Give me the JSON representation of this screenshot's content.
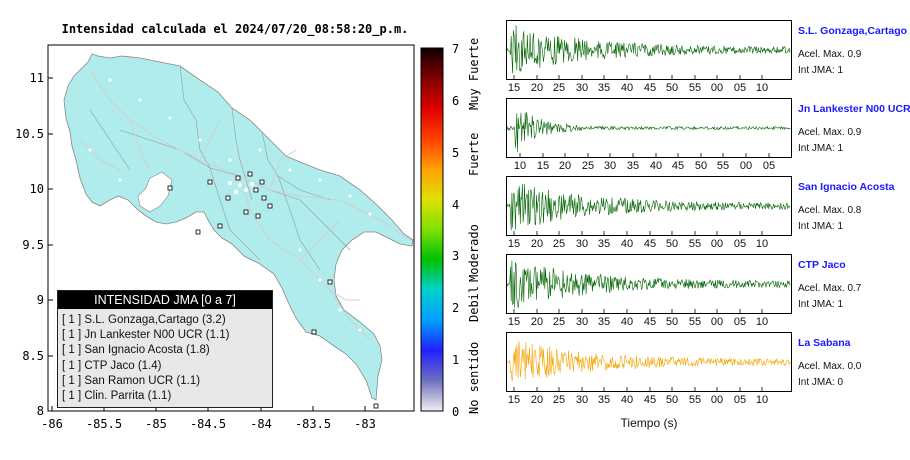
{
  "map": {
    "title": "Intensidad calculada el 2024/07/20_08:58:20_p.m.",
    "lat_ticks": [
      "11",
      "10.5",
      "10",
      "9.5",
      "9",
      "8.5",
      "8"
    ],
    "lon_ticks": [
      "-86",
      "-85.5",
      "-85",
      "-84.5",
      "-84",
      "-83.5",
      "-83"
    ],
    "land_color": "#b0ecec",
    "legend": {
      "title": "INTENSIDAD JMA [0 a 7]",
      "items": [
        "[ 1 ]  S.L. Gonzaga,Cartago (3.2)",
        "[ 1 ]  Jn Lankester N00 UCR (1.1)",
        "[ 1 ]  San Ignacio Acosta (1.8)",
        "[ 1 ]  CTP Jaco (1.4)",
        "[ 1 ]  San Ramon UCR (1.1)",
        "[ 1 ]  Clin. Parrita (1.1)"
      ]
    }
  },
  "colorbar": {
    "ticks": [
      "7",
      "6",
      "5",
      "4",
      "3",
      "2",
      "1",
      "0"
    ],
    "category_labels": [
      "Muy Fuerte",
      "Fuerte",
      "Moderado",
      "Debil",
      "No sentido"
    ],
    "colors": [
      "#f0f0f0",
      "#7070c0",
      "#2020ff",
      "#00a0ff",
      "#00d0d0",
      "#00c000",
      "#80e000",
      "#e0e000",
      "#ffa000",
      "#ff4000",
      "#e00000",
      "#800000",
      "#100000"
    ]
  },
  "stations": [
    {
      "name": "S.L. Gonzaga,Cartago",
      "acel": "Acel. Max. 0.9",
      "jma": "Int JMA: 1",
      "color": "#006400",
      "ticks": [
        "15",
        "20",
        "25",
        "30",
        "35",
        "40",
        "45",
        "50",
        "55",
        "00",
        "05",
        "10"
      ]
    },
    {
      "name": "Jn Lankester N00 UCR",
      "acel": "Acel. Max. 0.9",
      "jma": "Int JMA: 1",
      "color": "#006400",
      "ticks": [
        "10",
        "15",
        "20",
        "25",
        "30",
        "35",
        "40",
        "45",
        "50",
        "55",
        "00",
        "05"
      ]
    },
    {
      "name": "San Ignacio Acosta",
      "acel": "Acel. Max. 0.8",
      "jma": "Int JMA: 1",
      "color": "#006400",
      "ticks": [
        "15",
        "20",
        "25",
        "30",
        "35",
        "40",
        "45",
        "50",
        "55",
        "00",
        "05",
        "10"
      ]
    },
    {
      "name": "CTP Jaco",
      "acel": "Acel. Max. 0.7",
      "jma": "Int JMA: 1",
      "color": "#006400",
      "ticks": [
        "15",
        "20",
        "25",
        "30",
        "35",
        "40",
        "45",
        "50",
        "55",
        "00",
        "05",
        "10"
      ]
    },
    {
      "name": "La Sabana",
      "acel": "Acel. Max. 0.0",
      "jma": "Int JMA: 0",
      "color": "#f5a300",
      "ticks": [
        "15",
        "20",
        "25",
        "30",
        "35",
        "40",
        "45",
        "50",
        "55",
        "00",
        "05",
        "10"
      ]
    }
  ],
  "time_axis_label": "Tiempo (s)"
}
